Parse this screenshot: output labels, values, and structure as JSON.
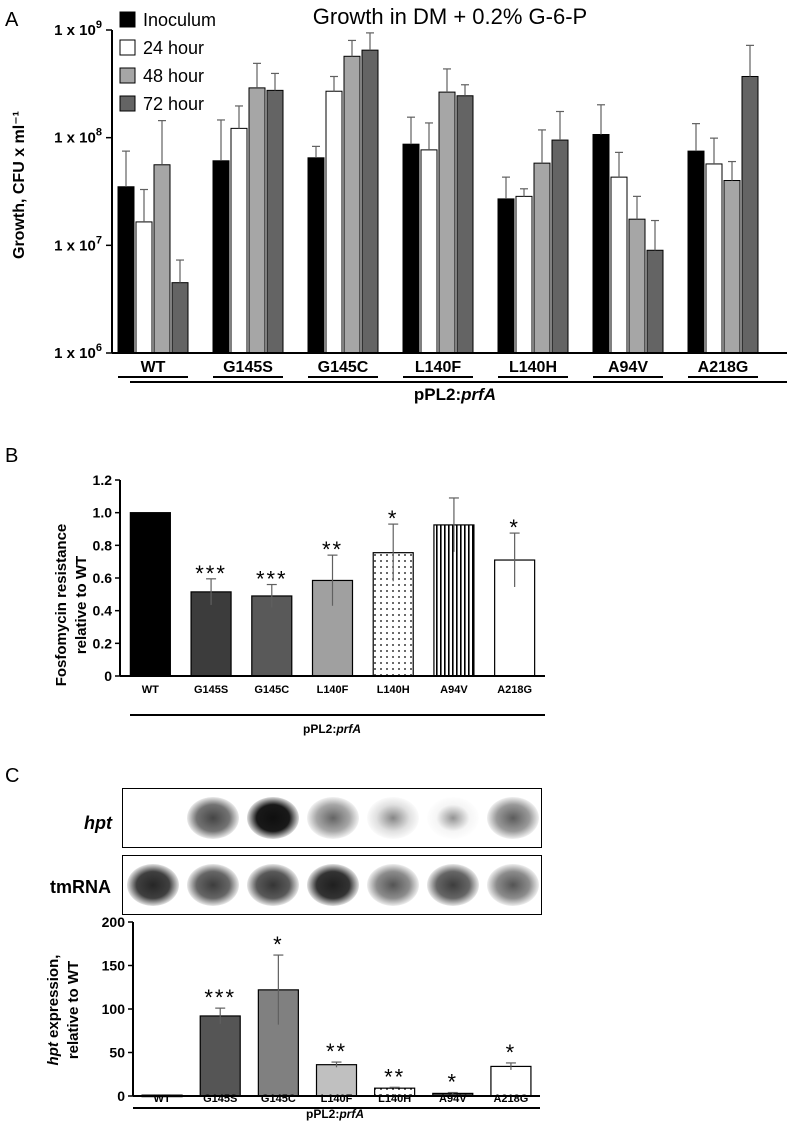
{
  "chart_data": [
    {
      "panel": "A",
      "type": "bar",
      "title": "Growth in DM + 0.2% G-6-P",
      "ylabel": "Growth, CFU x ml⁻¹",
      "xlabel": "pPL2:prfA",
      "xlabel_plain": "pPL2:",
      "xlabel_italic": "prfA",
      "yscale": "log",
      "ylim": [
        1000000,
        1000000000
      ],
      "yticks": [
        {
          "value": 1000000,
          "label_base": "1 x 10",
          "label_exp": "6"
        },
        {
          "value": 10000000,
          "label_base": "1 x 10",
          "label_exp": "7"
        },
        {
          "value": 100000000,
          "label_base": "1 x 10",
          "label_exp": "8"
        },
        {
          "value": 1000000000,
          "label_base": "1 x 10",
          "label_exp": "9"
        }
      ],
      "legend_position": "top-left",
      "categories": [
        "WT",
        "G145S",
        "G145C",
        "L140F",
        "L140H",
        "A94V",
        "A218G"
      ],
      "series": [
        {
          "name": "Inoculum",
          "color": "#000000",
          "values": [
            35000000,
            61000000,
            65000000,
            87000000,
            27000000,
            107000000,
            75000000
          ],
          "errors": [
            40000000,
            85000000,
            18000000,
            68000000,
            16000000,
            95000000,
            60000000
          ]
        },
        {
          "name": "24 hour",
          "color": "#ffffff",
          "values": [
            16500000,
            122000000,
            270000000,
            77000000,
            28500000,
            43000000,
            57000000
          ],
          "errors": [
            16500000,
            75000000,
            100000000,
            60000000,
            5000000,
            30000000,
            42000000
          ]
        },
        {
          "name": "48 hour",
          "color": "#a6a6a6",
          "values": [
            56000000,
            290000000,
            570000000,
            265000000,
            58000000,
            17500000,
            40000000
          ],
          "errors": [
            88000000,
            200000000,
            230000000,
            170000000,
            60000000,
            11000000,
            20000000
          ]
        },
        {
          "name": "72 hour",
          "color": "#646464",
          "values": [
            4500000,
            275000000,
            650000000,
            245000000,
            95000000,
            9000000,
            370000000
          ],
          "errors": [
            2800000,
            120000000,
            290000000,
            65000000,
            80000000,
            8000000,
            350000000
          ]
        }
      ]
    },
    {
      "panel": "B",
      "type": "bar",
      "ylabel": "Fosfomycin resistance relative to WT",
      "ylabel_lines": [
        "Fosfomycin resistance",
        "relative to WT"
      ],
      "xlabel": "pPL2:prfA",
      "xlabel_plain": "pPL2:",
      "xlabel_italic": "prfA",
      "ylim": [
        0,
        1.2
      ],
      "yticks": [
        "0",
        "0.2",
        "0.4",
        "0.6",
        "0.8",
        "1.0",
        "1.2"
      ],
      "categories": [
        "WT",
        "G145S",
        "G145C",
        "L140F",
        "L140H",
        "A94V",
        "A218G"
      ],
      "values": [
        1.0,
        0.515,
        0.49,
        0.585,
        0.755,
        0.925,
        0.71
      ],
      "errors": [
        0,
        0.08,
        0.07,
        0.155,
        0.175,
        0.165,
        0.165
      ],
      "significance": [
        "",
        "***",
        "***",
        "**",
        "*",
        "",
        "*"
      ],
      "fills": [
        "#000000",
        "#3c3c3c",
        "#595959",
        "#a0a0a0",
        "dots",
        "vlines",
        "#ffffff"
      ]
    },
    {
      "panel": "C",
      "type": "bar",
      "ylabel": "hpt expression, relative to WT",
      "ylabel_line1_italic": "hpt",
      "ylabel_line1_plain": " expression,",
      "ylabel_line2": "relative to WT",
      "xlabel": "pPL2:prfA",
      "xlabel_plain": "pPL2:",
      "xlabel_italic": "prfA",
      "ylim": [
        0,
        200
      ],
      "yticks": [
        "0",
        "50",
        "100",
        "150",
        "200"
      ],
      "categories": [
        "WT",
        "G145S",
        "G145C",
        "L140F",
        "L140H",
        "A94V",
        "A218G"
      ],
      "values": [
        1,
        92,
        122,
        36,
        9,
        3,
        34
      ],
      "errors": [
        0,
        9,
        40,
        3,
        1,
        1,
        4
      ],
      "significance": [
        "",
        "***",
        "*",
        "**",
        "**",
        "*",
        "*"
      ],
      "fills": [
        "#000000",
        "#555555",
        "#808080",
        "#c0c0c0",
        "dots",
        "#444444",
        "#ffffff"
      ]
    }
  ],
  "panel_labels": {
    "a": "A",
    "b": "B",
    "c": "C"
  },
  "blots": {
    "hpt_label": "hpt",
    "tmrna_label": "tmRNA",
    "hpt_intensity": [
      0,
      0.55,
      0.9,
      0.35,
      0.12,
      0.04,
      0.4
    ],
    "tmrna_intensity": [
      0.75,
      0.6,
      0.65,
      0.8,
      0.45,
      0.6,
      0.45
    ]
  }
}
